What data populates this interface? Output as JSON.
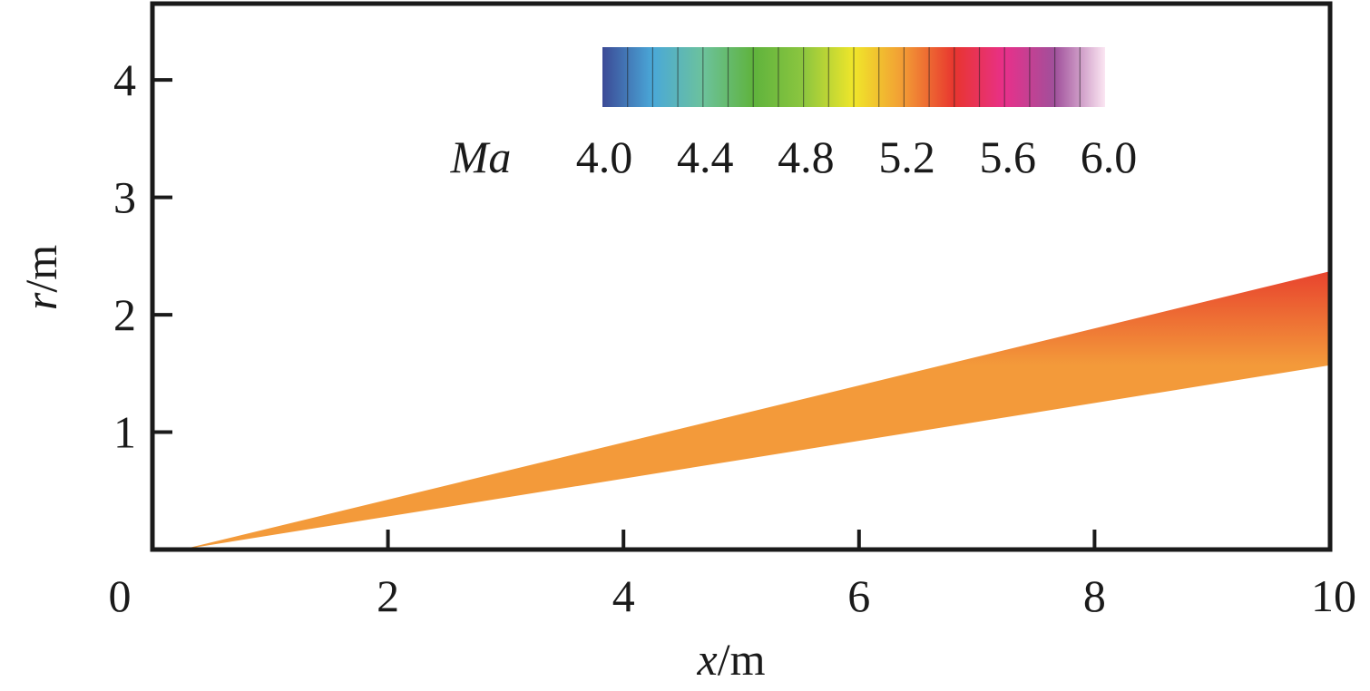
{
  "chart_data": {
    "type": "heatmap",
    "description_free": true,
    "xlabel_var": "x",
    "xlabel_unit": "/m",
    "ylabel_var": "r",
    "ylabel_unit": "/m",
    "xlim": [
      0,
      10
    ],
    "ylim": [
      0,
      4.65
    ],
    "xticks": [
      0,
      2,
      4,
      6,
      8,
      10
    ],
    "xtick_labels": [
      "0",
      "2",
      "4",
      "6",
      "8",
      "10"
    ],
    "yticks": [
      1,
      2,
      3,
      4
    ],
    "ytick_labels": [
      "1",
      "2",
      "3",
      "4"
    ],
    "colorbar": {
      "label": "Ma",
      "range": [
        4.0,
        6.0
      ],
      "ticks": [
        4.0,
        4.4,
        4.8,
        5.2,
        5.6,
        6.0
      ],
      "tick_labels": [
        "4.0",
        "4.4",
        "4.8",
        "5.2",
        "5.6",
        "6.0"
      ],
      "colors": [
        "#3c4a96",
        "#4aa8d8",
        "#6cc29c",
        "#5fb33d",
        "#8cc63f",
        "#f0e62a",
        "#f29a35",
        "#e8352f",
        "#e8308a",
        "#a0509b",
        "#fbe6f2"
      ]
    },
    "region": {
      "upper_edge": [
        [
          0.25,
          0.0
        ],
        [
          10.0,
          2.37
        ]
      ],
      "lower_edge": [
        [
          0.25,
          0.0
        ],
        [
          10.0,
          1.57
        ]
      ],
      "color_upper": "#e8432e",
      "color_lower": "#f39a3a"
    },
    "grid": false
  }
}
